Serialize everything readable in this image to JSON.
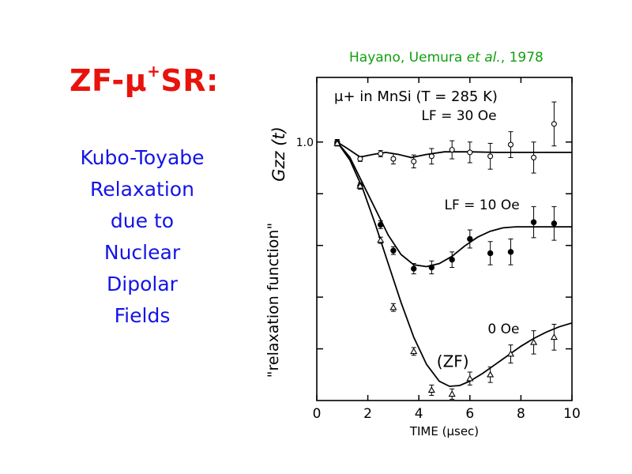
{
  "slide": {
    "title_main": "ZF-",
    "title_mu": "μ",
    "title_sup": "+",
    "title_tail": "SR:",
    "side_lines": [
      "Kubo-Toyabe",
      "Relaxation",
      "due to",
      "Nuclear",
      "Dipolar",
      "Fields"
    ],
    "citation_prefix": "Hayano, Uemura ",
    "citation_etal": "et al.",
    "citation_suffix": ", 1978",
    "colors": {
      "title": "#e8130c",
      "side_text": "#1414e6",
      "citation": "#10a010",
      "ylabel_gzz": "#e8130c"
    }
  },
  "chart_data": {
    "type": "scatter",
    "title": "μ+ in MnSi (T = 285 K)",
    "xlabel": "TIME (μsec)",
    "ylabel": "\"relaxation function\"",
    "ylabel_extra": "Gzz (t)",
    "xlim": [
      0,
      10
    ],
    "ylim": [
      0,
      1.25
    ],
    "x_ticks": [
      0,
      2,
      4,
      6,
      8,
      10
    ],
    "x_tick_labels": [
      "0",
      "2",
      "4",
      "6",
      "8",
      "10"
    ],
    "y_ticks": [
      0.2,
      0.4,
      0.6,
      0.8,
      1.0
    ],
    "y_tick_labels": [
      "",
      "",
      "",
      "",
      "1.0"
    ],
    "grid": false,
    "series": [
      {
        "name": "LF = 30 Oe",
        "marker": "open-circle",
        "points": [
          {
            "x": 0.8,
            "y": 1.0,
            "err": 0.01
          },
          {
            "x": 1.7,
            "y": 0.935,
            "err": 0.01
          },
          {
            "x": 2.5,
            "y": 0.955,
            "err": 0.012
          },
          {
            "x": 3.0,
            "y": 0.935,
            "err": 0.02
          },
          {
            "x": 3.8,
            "y": 0.925,
            "err": 0.025
          },
          {
            "x": 4.5,
            "y": 0.945,
            "err": 0.03
          },
          {
            "x": 5.3,
            "y": 0.97,
            "err": 0.035
          },
          {
            "x": 6.0,
            "y": 0.96,
            "err": 0.04
          },
          {
            "x": 6.8,
            "y": 0.945,
            "err": 0.05
          },
          {
            "x": 7.6,
            "y": 0.99,
            "err": 0.05
          },
          {
            "x": 8.5,
            "y": 0.94,
            "err": 0.06
          },
          {
            "x": 9.3,
            "y": 1.07,
            "err": 0.085
          }
        ],
        "curve": [
          [
            0.8,
            1.0
          ],
          [
            1.2,
            0.975
          ],
          [
            1.7,
            0.942
          ],
          [
            2.2,
            0.952
          ],
          [
            2.7,
            0.96
          ],
          [
            3.2,
            0.952
          ],
          [
            3.7,
            0.94
          ],
          [
            4.3,
            0.952
          ],
          [
            5.0,
            0.962
          ],
          [
            6.0,
            0.962
          ],
          [
            7.0,
            0.96
          ],
          [
            8.0,
            0.96
          ],
          [
            9.0,
            0.96
          ],
          [
            10.0,
            0.96
          ]
        ]
      },
      {
        "name": "LF = 10 Oe",
        "marker": "filled-circle",
        "points": [
          {
            "x": 0.8,
            "y": 0.995,
            "err": 0.01
          },
          {
            "x": 1.7,
            "y": 0.83,
            "err": 0.012
          },
          {
            "x": 2.5,
            "y": 0.68,
            "err": 0.015
          },
          {
            "x": 3.0,
            "y": 0.58,
            "err": 0.015
          },
          {
            "x": 3.8,
            "y": 0.51,
            "err": 0.02
          },
          {
            "x": 4.5,
            "y": 0.515,
            "err": 0.025
          },
          {
            "x": 5.3,
            "y": 0.545,
            "err": 0.03
          },
          {
            "x": 6.0,
            "y": 0.625,
            "err": 0.035
          },
          {
            "x": 6.8,
            "y": 0.57,
            "err": 0.045
          },
          {
            "x": 7.6,
            "y": 0.575,
            "err": 0.05
          },
          {
            "x": 8.5,
            "y": 0.69,
            "err": 0.06
          },
          {
            "x": 9.3,
            "y": 0.685,
            "err": 0.065
          }
        ],
        "curve": [
          [
            0.8,
            1.0
          ],
          [
            1.3,
            0.94
          ],
          [
            1.8,
            0.84
          ],
          [
            2.3,
            0.74
          ],
          [
            2.8,
            0.64
          ],
          [
            3.3,
            0.565
          ],
          [
            3.8,
            0.525
          ],
          [
            4.3,
            0.518
          ],
          [
            4.8,
            0.53
          ],
          [
            5.3,
            0.558
          ],
          [
            5.8,
            0.598
          ],
          [
            6.3,
            0.632
          ],
          [
            6.8,
            0.655
          ],
          [
            7.3,
            0.668
          ],
          [
            7.8,
            0.672
          ],
          [
            8.5,
            0.672
          ],
          [
            9.3,
            0.672
          ],
          [
            10.0,
            0.672
          ]
        ]
      },
      {
        "name": "0 Oe (ZF)",
        "marker": "open-triangle",
        "points": [
          {
            "x": 0.8,
            "y": 0.995,
            "err": 0.01
          },
          {
            "x": 1.7,
            "y": 0.83,
            "err": 0.012
          },
          {
            "x": 2.5,
            "y": 0.62,
            "err": 0.012
          },
          {
            "x": 3.0,
            "y": 0.36,
            "err": 0.015
          },
          {
            "x": 3.8,
            "y": 0.19,
            "err": 0.015
          },
          {
            "x": 4.5,
            "y": 0.04,
            "err": 0.02
          },
          {
            "x": 5.3,
            "y": 0.025,
            "err": 0.02
          },
          {
            "x": 6.0,
            "y": 0.085,
            "err": 0.025
          },
          {
            "x": 6.8,
            "y": 0.1,
            "err": 0.03
          },
          {
            "x": 7.6,
            "y": 0.18,
            "err": 0.035
          },
          {
            "x": 8.5,
            "y": 0.225,
            "err": 0.045
          },
          {
            "x": 9.3,
            "y": 0.245,
            "err": 0.05
          }
        ],
        "curve": [
          [
            0.8,
            1.0
          ],
          [
            1.3,
            0.93
          ],
          [
            1.8,
            0.82
          ],
          [
            2.3,
            0.68
          ],
          [
            2.8,
            0.53
          ],
          [
            3.3,
            0.38
          ],
          [
            3.8,
            0.245
          ],
          [
            4.3,
            0.14
          ],
          [
            4.8,
            0.075
          ],
          [
            5.2,
            0.055
          ],
          [
            5.6,
            0.058
          ],
          [
            6.0,
            0.075
          ],
          [
            6.5,
            0.105
          ],
          [
            7.0,
            0.14
          ],
          [
            7.5,
            0.175
          ],
          [
            8.0,
            0.21
          ],
          [
            8.5,
            0.24
          ],
          [
            9.0,
            0.265
          ],
          [
            9.5,
            0.285
          ],
          [
            10.0,
            0.3
          ]
        ]
      }
    ],
    "annotations": [
      {
        "text": "LF = 30 Oe",
        "x": 4.1,
        "y": 1.085
      },
      {
        "text": "LF = 10 Oe",
        "x": 5.0,
        "y": 0.74
      },
      {
        "text": "0 Oe",
        "x": 6.7,
        "y": 0.26
      },
      {
        "text": "(ZF)",
        "x": 4.7,
        "y": 0.13
      }
    ]
  }
}
